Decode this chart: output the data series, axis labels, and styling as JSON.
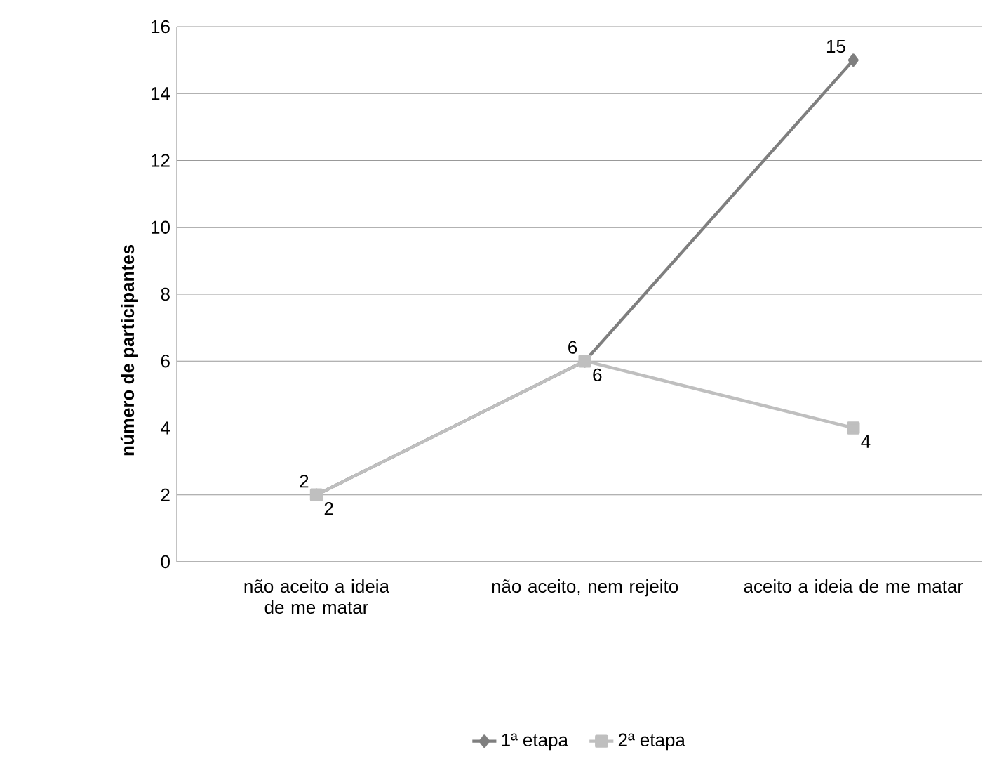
{
  "chart_data": {
    "type": "line",
    "ylabel": "número de participantes",
    "categories": [
      "não aceito a ideia de me matar",
      "não aceito, nem rejeito",
      "aceito a ideia de me matar"
    ],
    "series": [
      {
        "name": "1ª etapa",
        "color": "#7f7f7f",
        "marker": "diamond",
        "values": [
          2,
          6,
          15
        ]
      },
      {
        "name": "2ª etapa",
        "color": "#bfbfbf",
        "marker": "square",
        "values": [
          2,
          6,
          4
        ]
      }
    ],
    "ylim": [
      0,
      16
    ],
    "yticks": [
      0,
      2,
      4,
      6,
      8,
      10,
      12,
      14,
      16
    ],
    "grid": "y",
    "legend": "bottom",
    "data_labels": true
  }
}
